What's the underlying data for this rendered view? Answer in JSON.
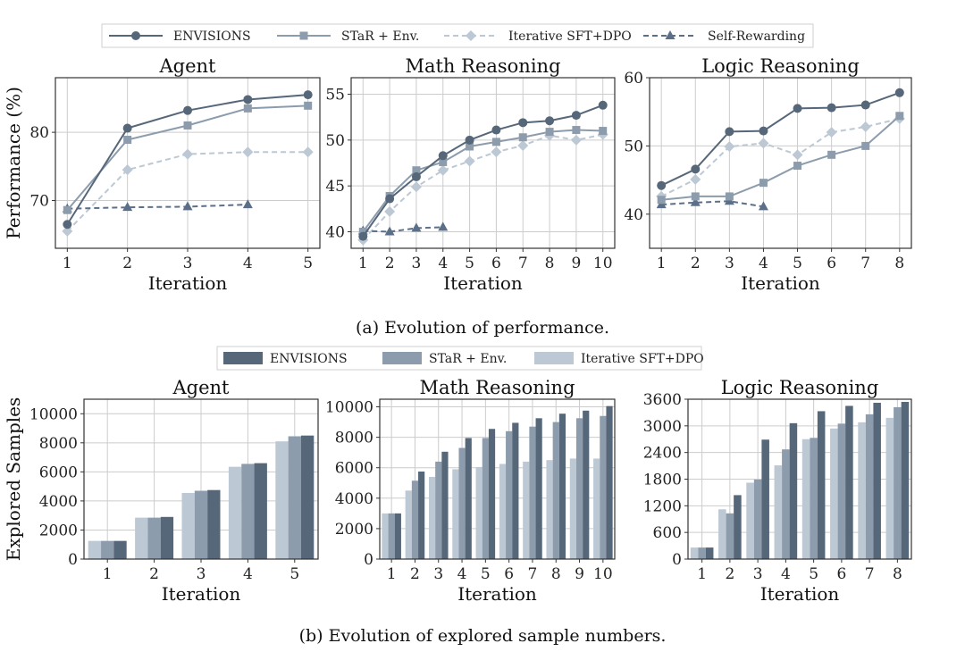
{
  "colors": {
    "envisions": "#56677a",
    "star_env": "#8c9cac",
    "iterative_sft_dpo": "#bcc8d3",
    "self_rewarding": "#5b7088",
    "grid": "#cccccc",
    "axis": "#333333"
  },
  "captions": {
    "a": "(a) Evolution of performance.",
    "b": "(b) Evolution of explored sample numbers."
  },
  "legend_a": {
    "entries": [
      {
        "label": "ENVISIONS",
        "marker": "circle",
        "dash": false,
        "color_key": "envisions"
      },
      {
        "label": "STaR + Env.",
        "marker": "square",
        "dash": false,
        "color_key": "star_env"
      },
      {
        "label": "Iterative SFT+DPO",
        "marker": "diamond",
        "dash": true,
        "color_key": "iterative_sft_dpo"
      },
      {
        "label": "Self-Rewarding",
        "marker": "triangle",
        "dash": true,
        "color_key": "self_rewarding"
      }
    ]
  },
  "legend_b": {
    "entries": [
      {
        "label": "ENVISIONS",
        "color_key": "envisions"
      },
      {
        "label": "STaR + Env.",
        "color_key": "star_env"
      },
      {
        "label": "Iterative SFT+DPO",
        "color_key": "iterative_sft_dpo"
      }
    ]
  },
  "chart_data": [
    {
      "type": "line",
      "title": "Agent",
      "xlabel": "Iteration",
      "ylabel": "Performance (%)",
      "x": [
        1,
        2,
        3,
        4,
        5
      ],
      "ylim": [
        63,
        88
      ],
      "yticks": [
        70,
        80
      ],
      "grid": true,
      "series": [
        {
          "name": "ENVISIONS",
          "x": [
            1,
            2,
            3,
            4,
            5
          ],
          "values": [
            66.5,
            80.6,
            83.2,
            84.8,
            85.5
          ]
        },
        {
          "name": "STaR + Env.",
          "x": [
            1,
            2,
            3,
            4,
            5
          ],
          "values": [
            68.6,
            78.9,
            81.0,
            83.5,
            83.9
          ]
        },
        {
          "name": "Iterative SFT+DPO",
          "x": [
            1,
            2,
            3,
            4,
            5
          ],
          "values": [
            65.5,
            74.5,
            76.8,
            77.1,
            77.1
          ]
        },
        {
          "name": "Self-Rewarding",
          "x": [
            1,
            2,
            3,
            4
          ],
          "values": [
            68.8,
            69.0,
            69.1,
            69.4
          ]
        }
      ]
    },
    {
      "type": "line",
      "title": "Math Reasoning",
      "xlabel": "Iteration",
      "ylabel": "",
      "x": [
        1,
        2,
        3,
        4,
        5,
        6,
        7,
        8,
        9,
        10
      ],
      "ylim": [
        38.2,
        56.8
      ],
      "yticks": [
        40,
        45,
        50,
        55
      ],
      "grid": true,
      "series": [
        {
          "name": "ENVISIONS",
          "x": [
            1,
            2,
            3,
            4,
            5,
            6,
            7,
            8,
            9,
            10
          ],
          "values": [
            39.5,
            43.6,
            46.0,
            48.3,
            50.0,
            51.1,
            51.9,
            52.1,
            52.7,
            53.8
          ]
        },
        {
          "name": "STaR + Env.",
          "x": [
            1,
            2,
            3,
            4,
            5,
            6,
            7,
            8,
            9,
            10
          ],
          "values": [
            40.0,
            43.9,
            46.7,
            47.6,
            49.3,
            49.8,
            50.3,
            50.9,
            51.1,
            51.0
          ]
        },
        {
          "name": "Iterative SFT+DPO",
          "x": [
            1,
            2,
            3,
            4,
            5,
            6,
            7,
            8,
            9,
            10
          ],
          "values": [
            39.1,
            42.2,
            44.9,
            46.7,
            47.7,
            48.7,
            49.4,
            50.5,
            50.0,
            50.6
          ]
        },
        {
          "name": "Self-Rewarding",
          "x": [
            1,
            2,
            3,
            4
          ],
          "values": [
            40.1,
            40.0,
            40.4,
            40.5
          ]
        }
      ]
    },
    {
      "type": "line",
      "title": "Logic Reasoning",
      "xlabel": "Iteration",
      "ylabel": "",
      "x": [
        1,
        2,
        3,
        4,
        5,
        6,
        7,
        8
      ],
      "ylim": [
        35,
        60
      ],
      "yticks": [
        40,
        50,
        60
      ],
      "grid": true,
      "series": [
        {
          "name": "ENVISIONS",
          "x": [
            1,
            2,
            3,
            4,
            5,
            6,
            7,
            8
          ],
          "values": [
            44.2,
            46.6,
            52.1,
            52.2,
            55.5,
            55.6,
            56.0,
            57.8
          ]
        },
        {
          "name": "STaR + Env.",
          "x": [
            1,
            2,
            3,
            4,
            5,
            6,
            7,
            8
          ],
          "values": [
            42.1,
            42.6,
            42.6,
            44.6,
            47.1,
            48.7,
            50.0,
            54.4
          ]
        },
        {
          "name": "Iterative SFT+DPO",
          "x": [
            1,
            2,
            3,
            4,
            5,
            6,
            7,
            8
          ],
          "values": [
            42.6,
            45.1,
            49.9,
            50.4,
            48.7,
            52.0,
            52.8,
            54.0
          ]
        },
        {
          "name": "Self-Rewarding",
          "x": [
            1,
            2,
            3,
            4
          ],
          "values": [
            41.4,
            41.7,
            41.9,
            41.1
          ]
        }
      ]
    },
    {
      "type": "bar",
      "title": "Agent",
      "xlabel": "Iteration",
      "ylabel": "Explored Samples",
      "categories": [
        "1",
        "2",
        "3",
        "4",
        "5"
      ],
      "ylim": [
        0,
        11000
      ],
      "yticks": [
        0,
        2000,
        4000,
        6000,
        8000,
        10000
      ],
      "grid": true,
      "series": [
        {
          "name": "Iterative SFT+DPO",
          "values": [
            1250,
            2850,
            4550,
            6350,
            8100
          ]
        },
        {
          "name": "STaR + Env.",
          "values": [
            1250,
            2850,
            4700,
            6550,
            8450
          ]
        },
        {
          "name": "ENVISIONS",
          "values": [
            1250,
            2900,
            4750,
            6600,
            8500
          ]
        }
      ]
    },
    {
      "type": "bar",
      "title": "Math Reasoning",
      "xlabel": "Iteration",
      "ylabel": "",
      "categories": [
        "1",
        "2",
        "3",
        "4",
        "5",
        "6",
        "7",
        "8",
        "9",
        "10"
      ],
      "ylim": [
        0,
        10500
      ],
      "yticks": [
        0,
        2000,
        4000,
        6000,
        8000,
        10000
      ],
      "grid": true,
      "series": [
        {
          "name": "Iterative SFT+DPO",
          "values": [
            3000,
            4500,
            5400,
            5900,
            6050,
            6250,
            6400,
            6500,
            6600,
            6600
          ]
        },
        {
          "name": "STaR + Env.",
          "values": [
            3000,
            5150,
            6400,
            7300,
            7950,
            8400,
            8700,
            9000,
            9250,
            9400
          ]
        },
        {
          "name": "ENVISIONS",
          "values": [
            3000,
            5750,
            7050,
            7950,
            8550,
            8950,
            9250,
            9550,
            9750,
            10050
          ]
        }
      ]
    },
    {
      "type": "bar",
      "title": "Logic Reasoning",
      "xlabel": "Iteration",
      "ylabel": "",
      "categories": [
        "1",
        "2",
        "3",
        "4",
        "5",
        "6",
        "7",
        "8"
      ],
      "ylim": [
        0,
        3600
      ],
      "yticks": [
        0,
        600,
        1200,
        1800,
        2400,
        3000,
        3600
      ],
      "grid": true,
      "series": [
        {
          "name": "Iterative SFT+DPO",
          "values": [
            260,
            1120,
            1720,
            2110,
            2700,
            2940,
            3080,
            3180
          ]
        },
        {
          "name": "STaR + Env.",
          "values": [
            260,
            1030,
            1790,
            2470,
            2730,
            3050,
            3260,
            3420
          ]
        },
        {
          "name": "ENVISIONS",
          "values": [
            260,
            1440,
            2690,
            3060,
            3330,
            3450,
            3520,
            3540
          ]
        }
      ]
    }
  ]
}
